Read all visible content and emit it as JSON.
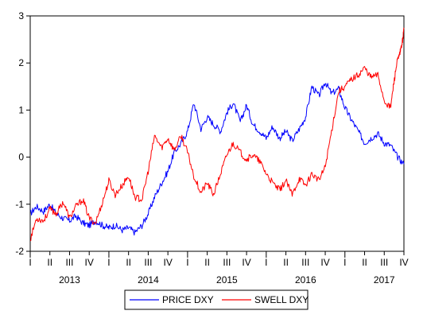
{
  "chart_data": {
    "type": "line",
    "title": "",
    "xlabel": "",
    "ylabel": "",
    "x_range": [
      2013.0,
      2017.75
    ],
    "ylim": [
      -2,
      3
    ],
    "yticks": [
      "-2",
      "-1",
      "0",
      "1",
      "2",
      "3"
    ],
    "quarter_labels": [
      "I",
      "II",
      "III",
      "IV",
      "I",
      "II",
      "III",
      "IV",
      "I",
      "II",
      "III",
      "IV",
      "I",
      "II",
      "III",
      "IV",
      "I",
      "II",
      "III",
      "IV",
      "I"
    ],
    "year_labels": [
      "2013",
      "2014",
      "2015",
      "2016",
      "2017"
    ],
    "grid": false,
    "legend_position": "bottom-center",
    "series": [
      {
        "name": "PRICE DXY",
        "color": "#0000ff",
        "x": [
          2013.0,
          2013.08,
          2013.17,
          2013.25,
          2013.33,
          2013.42,
          2013.5,
          2013.58,
          2013.67,
          2013.75,
          2013.83,
          2013.92,
          2014.0,
          2014.08,
          2014.17,
          2014.25,
          2014.33,
          2014.42,
          2014.5,
          2014.58,
          2014.67,
          2014.75,
          2014.83,
          2014.92,
          2015.0,
          2015.08,
          2015.17,
          2015.25,
          2015.33,
          2015.42,
          2015.5,
          2015.58,
          2015.67,
          2015.75,
          2015.83,
          2015.92,
          2016.0,
          2016.08,
          2016.17,
          2016.25,
          2016.33,
          2016.42,
          2016.5,
          2016.58,
          2016.67,
          2016.75,
          2016.83,
          2016.92,
          2017.0,
          2017.08,
          2017.17,
          2017.25,
          2017.33,
          2017.42,
          2017.5,
          2017.58,
          2017.67,
          2017.75
        ],
        "y": [
          -1.2,
          -1.05,
          -1.15,
          -1.0,
          -1.2,
          -1.3,
          -1.35,
          -1.25,
          -1.4,
          -1.45,
          -1.35,
          -1.45,
          -1.5,
          -1.45,
          -1.55,
          -1.5,
          -1.6,
          -1.45,
          -1.2,
          -0.85,
          -0.55,
          -0.3,
          0.1,
          0.3,
          0.55,
          1.15,
          0.6,
          0.85,
          0.7,
          0.55,
          0.95,
          1.15,
          0.75,
          1.1,
          0.7,
          0.55,
          0.4,
          0.65,
          0.4,
          0.55,
          0.35,
          0.6,
          0.85,
          1.5,
          1.3,
          1.6,
          1.35,
          1.45,
          1.05,
          0.8,
          0.55,
          0.3,
          0.4,
          0.5,
          0.3,
          0.25,
          0.0,
          -0.15
        ]
      },
      {
        "name": "SWELL DXY",
        "color": "#ff0000",
        "x": [
          2013.0,
          2013.08,
          2013.17,
          2013.25,
          2013.33,
          2013.42,
          2013.5,
          2013.58,
          2013.67,
          2013.75,
          2013.83,
          2013.92,
          2014.0,
          2014.08,
          2014.17,
          2014.25,
          2014.33,
          2014.42,
          2014.5,
          2014.58,
          2014.67,
          2014.75,
          2014.83,
          2014.92,
          2015.0,
          2015.08,
          2015.17,
          2015.25,
          2015.33,
          2015.42,
          2015.5,
          2015.58,
          2015.67,
          2015.75,
          2015.83,
          2015.92,
          2016.0,
          2016.08,
          2016.17,
          2016.25,
          2016.33,
          2016.42,
          2016.5,
          2016.58,
          2016.67,
          2016.75,
          2016.83,
          2016.92,
          2017.0,
          2017.08,
          2017.17,
          2017.25,
          2017.33,
          2017.42,
          2017.5,
          2017.58,
          2017.67,
          2017.75
        ],
        "y": [
          -1.75,
          -1.3,
          -1.35,
          -1.1,
          -1.2,
          -0.95,
          -1.3,
          -1.05,
          -0.9,
          -1.3,
          -1.4,
          -0.95,
          -0.5,
          -0.8,
          -0.6,
          -0.4,
          -0.85,
          -0.9,
          -0.3,
          0.45,
          0.2,
          0.4,
          0.15,
          0.45,
          0.1,
          -0.4,
          -0.75,
          -0.55,
          -0.8,
          -0.35,
          0.05,
          0.3,
          0.1,
          -0.05,
          0.05,
          -0.1,
          -0.35,
          -0.55,
          -0.7,
          -0.5,
          -0.8,
          -0.45,
          -0.6,
          -0.35,
          -0.5,
          -0.2,
          0.55,
          1.4,
          1.5,
          1.65,
          1.75,
          1.9,
          1.7,
          1.75,
          1.2,
          1.05,
          0.85,
          1.0
        ]
      }
    ],
    "series_tail": {
      "SWELL DXY": {
        "x": [
          2017.58,
          2017.62,
          2017.66,
          2017.7,
          2017.73,
          2017.75
        ],
        "y": [
          1.05,
          1.55,
          2.0,
          2.2,
          2.45,
          2.72
        ]
      }
    }
  }
}
